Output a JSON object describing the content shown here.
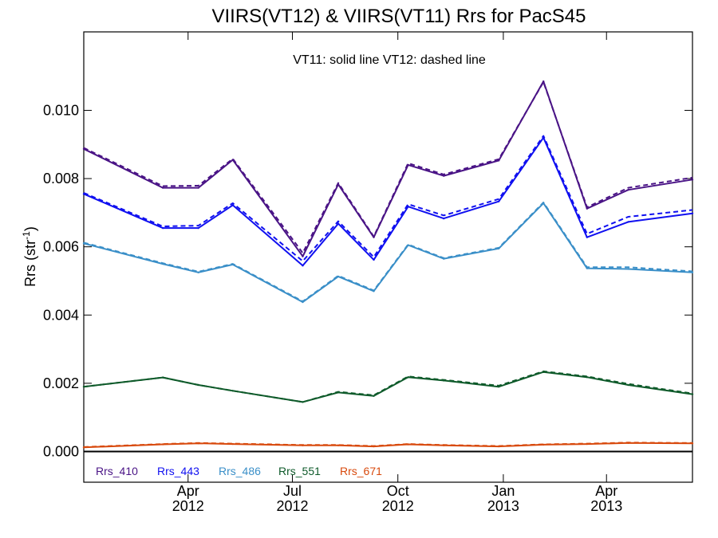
{
  "chart_data": {
    "type": "line",
    "title": "VIIRS(VT12) & VIIRS(VT11)  Rrs for PacS45",
    "annotation": "VT11: solid line   VT12: dashed line",
    "ylabel": "Rrs (str",
    "ylabel_sup": "-1",
    "ylabel_close": ")",
    "xlim": [
      "2012-01-01",
      "2013-06-15"
    ],
    "ylim": [
      -0.0009,
      0.0123
    ],
    "yticks": [
      0.0,
      0.002,
      0.004,
      0.006,
      0.008,
      0.01
    ],
    "ytick_labels": [
      "0.000",
      "0.002",
      "0.004",
      "0.006",
      "0.008",
      "0.010"
    ],
    "xticks": [
      {
        "date": "2012-04-01",
        "line1": "Apr",
        "line2": "2012"
      },
      {
        "date": "2012-07-01",
        "line1": "Jul",
        "line2": "2012"
      },
      {
        "date": "2012-10-01",
        "line1": "Oct",
        "line2": "2012"
      },
      {
        "date": "2013-01-01",
        "line1": "Jan",
        "line2": "2013"
      },
      {
        "date": "2013-04-01",
        "line1": "Apr",
        "line2": "2013"
      }
    ],
    "x": [
      "2012-01-01",
      "2012-03-10",
      "2012-04-10",
      "2012-05-10",
      "2012-07-10",
      "2012-08-10",
      "2012-09-10",
      "2012-10-10",
      "2012-11-10",
      "2012-12-28",
      "2013-02-05",
      "2013-03-15",
      "2013-04-20",
      "2013-06-15"
    ],
    "series": [
      {
        "name": "Rrs_410",
        "color": "#4a1486",
        "vt11": [
          0.00887,
          0.00773,
          0.00773,
          0.00855,
          0.00572,
          0.00783,
          0.00628,
          0.0084,
          0.00808,
          0.00853,
          0.01085,
          0.00712,
          0.00767,
          0.00797
        ],
        "vt12": [
          0.0089,
          0.00778,
          0.00779,
          0.00858,
          0.00582,
          0.00787,
          0.0063,
          0.00845,
          0.00812,
          0.00857,
          0.01083,
          0.00716,
          0.00773,
          0.00803
        ]
      },
      {
        "name": "Rrs_443",
        "color": "#1010f0",
        "vt11": [
          0.00755,
          0.00655,
          0.00655,
          0.00722,
          0.00545,
          0.00668,
          0.00562,
          0.00718,
          0.00683,
          0.00733,
          0.0092,
          0.00628,
          0.00673,
          0.00698
        ],
        "vt12": [
          0.00758,
          0.0066,
          0.00662,
          0.00728,
          0.00558,
          0.00675,
          0.0057,
          0.00725,
          0.00692,
          0.0074,
          0.00925,
          0.00638,
          0.00688,
          0.00708
        ]
      },
      {
        "name": "Rrs_486",
        "color": "#3a8fc8",
        "vt11": [
          0.0061,
          0.0055,
          0.00525,
          0.00548,
          0.00438,
          0.00513,
          0.0047,
          0.00605,
          0.00565,
          0.00595,
          0.00728,
          0.00537,
          0.00535,
          0.00525
        ],
        "vt12": [
          0.00612,
          0.00552,
          0.00527,
          0.0055,
          0.0044,
          0.00515,
          0.00472,
          0.00607,
          0.00567,
          0.00597,
          0.0073,
          0.0054,
          0.0054,
          0.00528
        ]
      },
      {
        "name": "Rrs_551",
        "color": "#0e5a2a",
        "vt11": [
          0.0019,
          0.00217,
          0.00195,
          0.00178,
          0.00145,
          0.00173,
          0.00163,
          0.00218,
          0.00208,
          0.0019,
          0.00233,
          0.00218,
          0.00195,
          0.00168
        ],
        "vt12": [
          0.0019,
          0.00217,
          0.00195,
          0.00178,
          0.00145,
          0.00175,
          0.00165,
          0.0022,
          0.0021,
          0.00193,
          0.00235,
          0.0022,
          0.00198,
          0.0017
        ]
      },
      {
        "name": "Rrs_671",
        "color": "#d8490c",
        "vt11": [
          0.00012,
          0.00021,
          0.00024,
          0.00022,
          0.00018,
          0.00018,
          0.00015,
          0.00021,
          0.00018,
          0.00015,
          0.0002,
          0.00022,
          0.00025,
          0.00024
        ],
        "vt12": [
          0.00013,
          0.00022,
          0.00025,
          0.00023,
          0.00019,
          0.00019,
          0.00016,
          0.00022,
          0.00019,
          0.00016,
          0.00021,
          0.00023,
          0.00026,
          0.00025
        ]
      }
    ],
    "zero_line": true,
    "grid": false,
    "legend_position": "bottom-left"
  }
}
